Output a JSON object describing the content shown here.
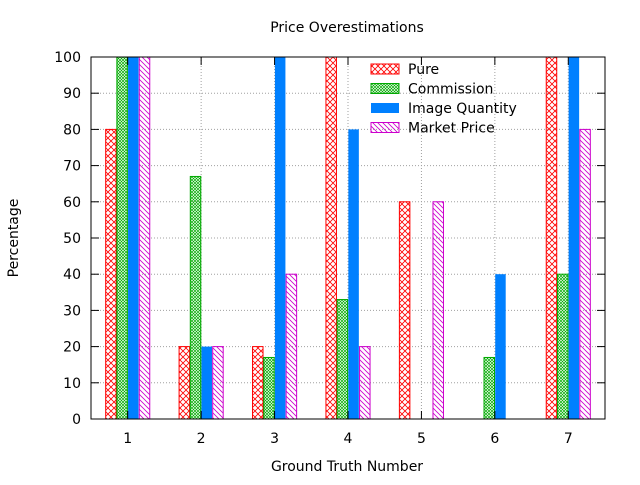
{
  "chart_data": {
    "type": "bar",
    "title": "Price Overestimations",
    "xlabel": "Ground Truth Number",
    "ylabel": "Percentage",
    "categories": [
      "1",
      "2",
      "3",
      "4",
      "5",
      "6",
      "7"
    ],
    "ylim": [
      0,
      100
    ],
    "yticks": [
      0,
      10,
      20,
      30,
      40,
      50,
      60,
      70,
      80,
      90,
      100
    ],
    "grid": true,
    "legend_position": "top-right",
    "series": [
      {
        "name": "Pure",
        "color": "#ff0000",
        "pattern": "crosshatch",
        "values": [
          80,
          20,
          20,
          100,
          60,
          0,
          100
        ]
      },
      {
        "name": "Commission",
        "color": "#00aa00",
        "pattern": "fine-crosshatch",
        "values": [
          100,
          67,
          17,
          33,
          0,
          17,
          40
        ]
      },
      {
        "name": "Image Quantity",
        "color": "#0080ff",
        "pattern": "solid",
        "values": [
          100,
          20,
          100,
          80,
          0,
          40,
          100
        ]
      },
      {
        "name": "Market Price",
        "color": "#cc00cc",
        "pattern": "diagonal",
        "values": [
          100,
          20,
          40,
          20,
          60,
          0,
          80
        ]
      }
    ]
  }
}
